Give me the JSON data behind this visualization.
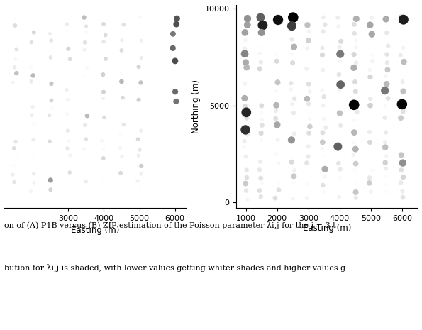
{
  "xlabel": "Easting (m)",
  "ylabel": "Northing (m)",
  "easting_ticks_A": [
    3000,
    4000,
    5000,
    6000
  ],
  "easting_ticks_B": [
    1000,
    2000,
    3000,
    4000,
    5000,
    6000
  ],
  "northing_ticks_B": [
    0,
    5000
  ],
  "background": "#ffffff",
  "cap1": "on of (A) P1B versus (B) ZIP estimation of the Poisson parameter λi,j for the i = 3 t",
  "cap2": "bution for λi,j is shaded, with lower values getting whiter shades and higher values g",
  "dot_size_base": 12,
  "dot_size_scale": 40
}
